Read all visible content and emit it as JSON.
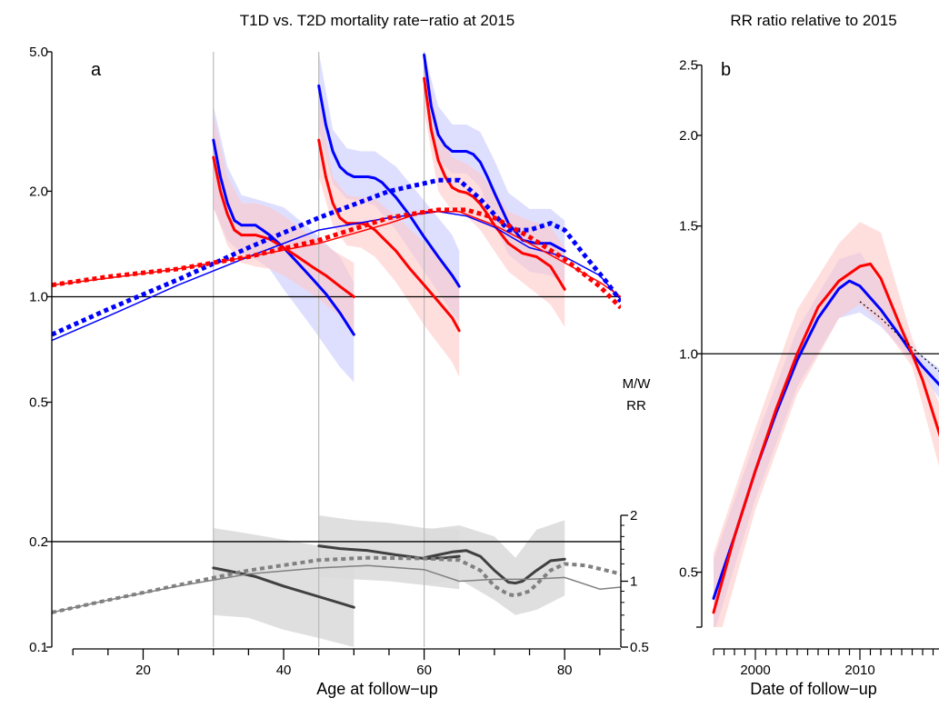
{
  "chart_data": [
    {
      "panel": "a",
      "type": "line",
      "title": "T1D vs. T2D mortality rate−ratio at 2015",
      "xlabel": "Age at follow−up",
      "ylabel": "",
      "right_axis_label_line1": "M/W",
      "right_axis_label_line2": "RR",
      "panel_letter": "a",
      "log_y": true,
      "xlim": [
        7,
        88
      ],
      "ylim": [
        0.1,
        5.0
      ],
      "x_ticks": [
        20,
        40,
        60,
        80
      ],
      "x_tick_labels": [
        "20",
        "40",
        "60",
        "80"
      ],
      "y_ticks": [
        0.1,
        0.2,
        0.5,
        1.0,
        2.0,
        5.0
      ],
      "y_tick_labels": [
        "0.1",
        "0.2",
        "0.5",
        "1.0",
        "2.0",
        "5.0"
      ],
      "right_axis": {
        "ticks": [
          0.5,
          1,
          2
        ],
        "tick_labels": [
          "0.5",
          "1",
          "2"
        ],
        "domain": [
          0.5,
          2
        ]
      },
      "vertical_lines_x": [
        30,
        45,
        60
      ],
      "reference_lines_y": [
        1.0,
        0.2
      ],
      "colors": {
        "men": "#ff0000",
        "women": "#0000ff",
        "men_band": "#ffc8c8",
        "women_band": "#c8c8ff",
        "ratio": "#404040",
        "ratio_light": "#808080",
        "ratio_band": "#dcdcdc"
      },
      "series": [
        {
          "group": "women",
          "kind": "cohort",
          "style": "solid-thick",
          "x": [
            30,
            31,
            32,
            33,
            34,
            35,
            36,
            37,
            38,
            40,
            42,
            44,
            46,
            48,
            50
          ],
          "y": [
            2.8,
            2.2,
            1.85,
            1.65,
            1.6,
            1.6,
            1.6,
            1.55,
            1.5,
            1.38,
            1.25,
            1.13,
            1.02,
            0.9,
            0.78
          ]
        },
        {
          "group": "men",
          "kind": "cohort",
          "style": "solid-thick",
          "x": [
            30,
            31,
            32,
            33,
            34,
            35,
            36,
            37,
            38,
            40,
            42,
            44,
            46,
            48,
            50
          ],
          "y": [
            2.5,
            2.0,
            1.72,
            1.55,
            1.5,
            1.5,
            1.5,
            1.48,
            1.46,
            1.38,
            1.3,
            1.22,
            1.15,
            1.07,
            1.0
          ]
        },
        {
          "group": "women",
          "kind": "cohort",
          "style": "solid-thick",
          "x": [
            45,
            46,
            47,
            48,
            49,
            50,
            51,
            52,
            53,
            54,
            56,
            58,
            60,
            62,
            64,
            65
          ],
          "y": [
            4.0,
            3.1,
            2.6,
            2.35,
            2.25,
            2.2,
            2.2,
            2.2,
            2.18,
            2.12,
            1.92,
            1.7,
            1.48,
            1.3,
            1.15,
            1.07
          ]
        },
        {
          "group": "men",
          "kind": "cohort",
          "style": "solid-thick",
          "x": [
            45,
            46,
            47,
            48,
            49,
            50,
            51,
            52,
            53,
            54,
            56,
            58,
            60,
            62,
            64,
            65
          ],
          "y": [
            2.8,
            2.2,
            1.85,
            1.68,
            1.62,
            1.62,
            1.62,
            1.6,
            1.55,
            1.48,
            1.35,
            1.2,
            1.08,
            0.97,
            0.87,
            0.8
          ]
        },
        {
          "group": "women",
          "kind": "cohort",
          "style": "solid-thick",
          "x": [
            60,
            61,
            62,
            63,
            64,
            65,
            66,
            67,
            68,
            69,
            70,
            72,
            74,
            76,
            78,
            80
          ],
          "y": [
            4.9,
            3.5,
            2.9,
            2.7,
            2.6,
            2.6,
            2.6,
            2.55,
            2.42,
            2.2,
            1.98,
            1.62,
            1.45,
            1.42,
            1.42,
            1.35
          ]
        },
        {
          "group": "men",
          "kind": "cohort",
          "style": "solid-thick",
          "x": [
            60,
            61,
            62,
            63,
            64,
            65,
            66,
            67,
            68,
            69,
            70,
            72,
            74,
            76,
            78,
            80
          ],
          "y": [
            4.2,
            3.0,
            2.45,
            2.2,
            2.05,
            2.0,
            1.98,
            1.93,
            1.84,
            1.72,
            1.6,
            1.42,
            1.33,
            1.3,
            1.22,
            1.05
          ]
        },
        {
          "group": "women",
          "kind": "cross-section",
          "style": "solid-thin",
          "x": [
            7,
            15,
            25,
            35,
            45,
            55,
            62,
            66,
            70,
            75,
            80,
            85,
            88
          ],
          "y": [
            0.75,
            0.88,
            1.08,
            1.3,
            1.55,
            1.68,
            1.75,
            1.7,
            1.58,
            1.38,
            1.3,
            1.15,
            0.98
          ]
        },
        {
          "group": "men",
          "kind": "cross-section",
          "style": "solid-thin",
          "x": [
            7,
            15,
            25,
            35,
            45,
            55,
            60,
            65,
            70,
            75,
            80,
            85,
            88
          ],
          "y": [
            1.08,
            1.13,
            1.2,
            1.3,
            1.42,
            1.62,
            1.75,
            1.75,
            1.6,
            1.42,
            1.25,
            1.1,
            1.0
          ]
        },
        {
          "group": "women",
          "kind": "smooth",
          "style": "dotted",
          "x": [
            7,
            15,
            25,
            35,
            45,
            55,
            62,
            65,
            68,
            72,
            75,
            78,
            80,
            83,
            86,
            88
          ],
          "y": [
            0.78,
            0.92,
            1.12,
            1.38,
            1.68,
            2.0,
            2.15,
            2.15,
            1.9,
            1.55,
            1.55,
            1.62,
            1.55,
            1.3,
            1.1,
            0.97
          ]
        },
        {
          "group": "men",
          "kind": "smooth",
          "style": "dotted",
          "x": [
            7,
            15,
            25,
            30,
            35,
            45,
            55,
            62,
            66,
            70,
            75,
            80,
            85,
            88
          ],
          "y": [
            1.08,
            1.14,
            1.2,
            1.25,
            1.3,
            1.45,
            1.68,
            1.77,
            1.77,
            1.68,
            1.48,
            1.28,
            1.07,
            0.93
          ]
        }
      ],
      "bands": [
        {
          "group": "women",
          "x": [
            30,
            32,
            34,
            36,
            38,
            40,
            44,
            48,
            50
          ],
          "lower": [
            1.8,
            1.45,
            1.33,
            1.28,
            1.2,
            1.05,
            0.82,
            0.63,
            0.57
          ],
          "upper": [
            3.5,
            2.35,
            1.95,
            1.9,
            1.85,
            1.8,
            1.55,
            1.3,
            1.1
          ]
        },
        {
          "group": "men",
          "x": [
            30,
            32,
            34,
            36,
            38,
            40,
            44,
            48,
            50
          ],
          "lower": [
            1.8,
            1.4,
            1.25,
            1.22,
            1.2,
            1.15,
            1.02,
            0.88,
            0.8
          ],
          "upper": [
            3.3,
            2.2,
            1.85,
            1.85,
            1.8,
            1.7,
            1.48,
            1.32,
            1.25
          ]
        },
        {
          "group": "women",
          "x": [
            45,
            47,
            49,
            51,
            53,
            56,
            60,
            64,
            65
          ],
          "lower": [
            3.0,
            2.1,
            1.9,
            1.88,
            1.82,
            1.55,
            1.18,
            0.9,
            0.85
          ],
          "upper": [
            5.0,
            3.0,
            2.65,
            2.6,
            2.6,
            2.35,
            1.88,
            1.5,
            1.35
          ]
        },
        {
          "group": "men",
          "x": [
            45,
            47,
            49,
            51,
            53,
            56,
            60,
            64,
            65
          ],
          "lower": [
            2.2,
            1.6,
            1.4,
            1.38,
            1.3,
            1.1,
            0.83,
            0.65,
            0.59
          ],
          "upper": [
            3.7,
            2.2,
            1.95,
            1.92,
            1.9,
            1.7,
            1.43,
            1.18,
            1.08
          ]
        },
        {
          "group": "women",
          "x": [
            60,
            62,
            64,
            66,
            68,
            70,
            72,
            75,
            78,
            80
          ],
          "lower": [
            4.1,
            2.45,
            2.25,
            2.25,
            2.05,
            1.62,
            1.32,
            1.18,
            1.15,
            1.1
          ],
          "upper": [
            5.0,
            3.5,
            3.1,
            3.1,
            2.95,
            2.45,
            1.98,
            1.78,
            1.78,
            1.65
          ]
        },
        {
          "group": "men",
          "x": [
            60,
            62,
            64,
            66,
            68,
            70,
            72,
            75,
            78,
            80
          ],
          "lower": [
            3.4,
            2.0,
            1.75,
            1.7,
            1.55,
            1.35,
            1.18,
            1.06,
            0.95,
            0.82
          ],
          "upper": [
            5.0,
            3.0,
            2.5,
            2.4,
            2.25,
            2.0,
            1.75,
            1.65,
            1.58,
            1.38
          ]
        }
      ],
      "ratio_series": [
        {
          "kind": "cohort",
          "style": "solid-thick",
          "x": [
            30,
            33,
            36,
            40,
            45,
            50
          ],
          "y": [
            1.15,
            1.1,
            1.05,
            0.95,
            0.85,
            0.76
          ]
        },
        {
          "kind": "cohort",
          "style": "solid-thick",
          "x": [
            45,
            48,
            52,
            56,
            60,
            63,
            65
          ],
          "y": [
            1.45,
            1.41,
            1.38,
            1.32,
            1.27,
            1.28,
            1.3
          ]
        },
        {
          "kind": "cohort",
          "style": "solid-thick",
          "x": [
            60,
            62,
            64,
            66,
            68,
            70,
            72,
            73,
            74,
            76,
            78,
            80
          ],
          "y": [
            1.28,
            1.32,
            1.36,
            1.38,
            1.3,
            1.12,
            0.99,
            0.98,
            1.0,
            1.12,
            1.24,
            1.26
          ]
        },
        {
          "kind": "smooth",
          "style": "dotted",
          "x": [
            7,
            15,
            25,
            35,
            45,
            52,
            60,
            65,
            68,
            70,
            72,
            73,
            75,
            78,
            80,
            83,
            88
          ],
          "y": [
            0.72,
            0.82,
            0.96,
            1.12,
            1.25,
            1.28,
            1.27,
            1.25,
            1.12,
            0.95,
            0.87,
            0.86,
            0.9,
            1.12,
            1.2,
            1.18,
            1.08
          ]
        },
        {
          "kind": "cross-section",
          "style": "solid-thin",
          "x": [
            7,
            15,
            25,
            35,
            45,
            52,
            60,
            65,
            70,
            75,
            80,
            85,
            88
          ],
          "y": [
            0.72,
            0.82,
            0.95,
            1.08,
            1.15,
            1.18,
            1.13,
            1.0,
            1.02,
            1.02,
            1.04,
            0.92,
            0.94
          ]
        }
      ],
      "ratio_bands": [
        {
          "x": [
            30,
            35,
            40,
            45,
            50
          ],
          "lower": [
            0.7,
            0.68,
            0.6,
            0.55,
            0.5
          ],
          "upper": [
            1.75,
            1.65,
            1.55,
            1.45,
            1.3
          ]
        },
        {
          "x": [
            45,
            50,
            55,
            60,
            65
          ],
          "lower": [
            1.05,
            1.02,
            1.0,
            0.96,
            0.92
          ],
          "upper": [
            2.0,
            1.9,
            1.85,
            1.75,
            1.72
          ]
        },
        {
          "x": [
            60,
            65,
            70,
            73,
            76,
            80
          ],
          "lower": [
            0.97,
            1.02,
            0.82,
            0.7,
            0.74,
            0.86
          ],
          "upper": [
            1.72,
            1.8,
            1.6,
            1.28,
            1.72,
            1.9
          ]
        }
      ]
    },
    {
      "panel": "b",
      "type": "line",
      "title": "RR ratio relative to 2015",
      "xlabel": "Date of follow−up",
      "ylabel": "",
      "panel_letter": "b",
      "log_y": true,
      "xlim": [
        1995,
        2018
      ],
      "ylim": [
        0.42,
        2.6
      ],
      "x_ticks": [
        2000,
        2010
      ],
      "x_tick_labels": [
        "2000",
        "2010"
      ],
      "y_ticks": [
        0.5,
        1.0,
        1.5,
        2.0,
        2.5
      ],
      "y_tick_labels": [
        "0.5",
        "1.0",
        "1.5",
        "2.0",
        "2.5"
      ],
      "reference_lines_y": [
        1.0
      ],
      "series": [
        {
          "group": "women",
          "style": "solid-thick",
          "x": [
            1996,
            1998,
            2000,
            2002,
            2004,
            2006,
            2008,
            2009,
            2010,
            2012,
            2014,
            2015,
            2016,
            2017.8
          ],
          "y": [
            0.46,
            0.56,
            0.69,
            0.83,
            0.98,
            1.12,
            1.23,
            1.26,
            1.24,
            1.15,
            1.05,
            1.0,
            0.96,
            0.9
          ]
        },
        {
          "group": "men",
          "style": "solid-thick",
          "x": [
            1996,
            1998,
            2000,
            2002,
            2004,
            2006,
            2008,
            2010,
            2011,
            2012,
            2014,
            2015,
            2016,
            2017.8
          ],
          "y": [
            0.44,
            0.56,
            0.69,
            0.84,
            1.0,
            1.16,
            1.26,
            1.32,
            1.33,
            1.27,
            1.08,
            1.0,
            0.92,
            0.76
          ]
        },
        {
          "group": "trend",
          "style": "dotted-thin",
          "x": [
            2010,
            2012,
            2014,
            2016,
            2017.8
          ],
          "y": [
            1.18,
            1.12,
            1.05,
            0.99,
            0.94
          ]
        }
      ],
      "bands": [
        {
          "group": "women",
          "x": [
            1996,
            2000,
            2004,
            2008,
            2010,
            2012,
            2015,
            2017.8
          ],
          "lower": [
            0.41,
            0.63,
            0.9,
            1.12,
            1.14,
            1.09,
            0.98,
            0.86
          ],
          "upper": [
            0.52,
            0.76,
            1.08,
            1.35,
            1.38,
            1.25,
            1.02,
            0.95
          ]
        },
        {
          "group": "men",
          "x": [
            1996,
            2000,
            2004,
            2008,
            2010,
            2012,
            2015,
            2017.8
          ],
          "lower": [
            0.38,
            0.61,
            0.88,
            1.12,
            1.17,
            1.1,
            0.96,
            0.68
          ],
          "upper": [
            0.53,
            0.79,
            1.15,
            1.42,
            1.52,
            1.47,
            1.05,
            0.84
          ]
        }
      ]
    }
  ]
}
